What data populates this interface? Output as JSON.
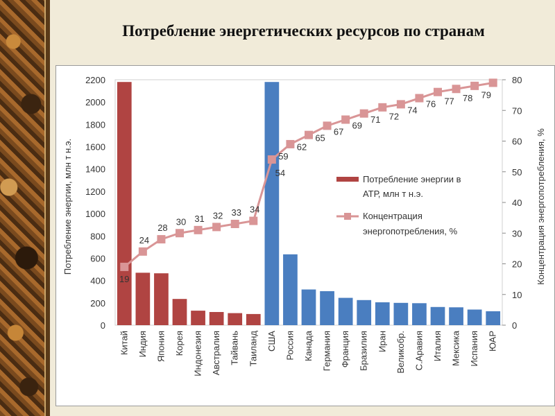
{
  "title": "Потребление энергетических ресурсов по странам",
  "chart_data": {
    "type": "bar+line",
    "categories": [
      "Китай",
      "Индия",
      "Япония",
      "Корея",
      "Индонезия",
      "Австралия",
      "Тайвань",
      "Таиланд",
      "США",
      "Россия",
      "Канада",
      "Германия",
      "Франция",
      "Бразилия",
      "Иран",
      "Великобр.",
      "С.Аравия",
      "Италия",
      "Мексика",
      "Испания",
      "ЮАР"
    ],
    "series": [
      {
        "name": "Потребление энергии в АТР, млн т н.э.",
        "axis": "left",
        "color_atr": "#b04442",
        "color_other": "#4a7ec0",
        "atr_count": 8,
        "values": [
          2180,
          470,
          465,
          235,
          130,
          118,
          108,
          100,
          2180,
          635,
          320,
          305,
          245,
          225,
          205,
          200,
          197,
          163,
          160,
          140,
          125
        ]
      },
      {
        "name": "Концентрация энергопотребления, %",
        "axis": "right",
        "color": "#d99596",
        "values": [
          19,
          24,
          28,
          30,
          31,
          32,
          33,
          34,
          54,
          59,
          62,
          65,
          67,
          69,
          71,
          72,
          74,
          76,
          77,
          78,
          79
        ]
      }
    ],
    "ylabel": "Потребление энергии, млн т н.э.",
    "ylim": [
      0,
      2200
    ],
    "yticks": [
      0,
      200,
      400,
      600,
      800,
      1000,
      1200,
      1400,
      1600,
      1800,
      2000,
      2200
    ],
    "y2label": "Концентрация энергопотребления, %",
    "y2lim": [
      0,
      80
    ],
    "y2ticks": [
      0,
      10,
      20,
      30,
      40,
      50,
      60,
      70,
      80
    ],
    "legend": {
      "position": "center-right",
      "bar_label_line1": "Потребление энергии в",
      "bar_label_line2": "АТР, млн т н.э.",
      "line_label_line1": "Концентрация",
      "line_label_line2": "энергопотребления, %"
    }
  }
}
